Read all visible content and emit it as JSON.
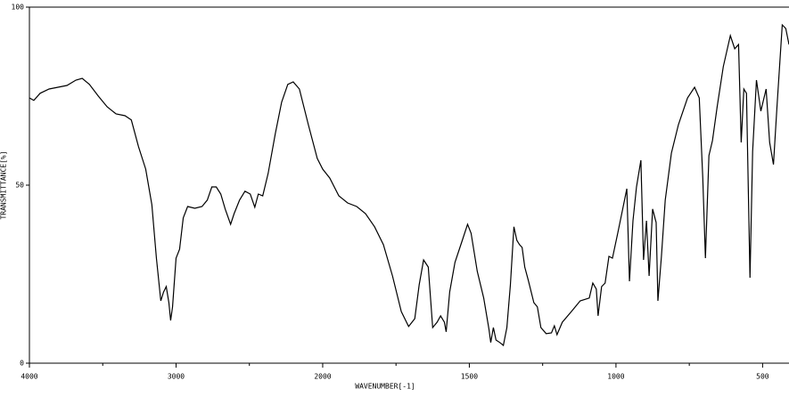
{
  "chart_data": {
    "type": "line",
    "xlabel": "WAVENUMBER[-1]",
    "ylabel": "TRANSMITTANCE[%]",
    "xlim": [
      4000,
      410
    ],
    "xticks": [
      4000,
      3000,
      2000,
      1500,
      1000,
      500
    ],
    "ylim": [
      0,
      100
    ],
    "yticks": [
      0,
      50,
      100
    ],
    "series": [
      {
        "color": "#000000",
        "x": [
          4000,
          3970,
          3927,
          3866,
          3805,
          3744,
          3683,
          3640,
          3591,
          3530,
          3470,
          3409,
          3348,
          3305,
          3256,
          3207,
          3165,
          3134,
          3104,
          3085,
          3067,
          3049,
          3037,
          3024,
          3000,
          2976,
          2951,
          2921,
          2872,
          2823,
          2787,
          2756,
          2726,
          2695,
          2665,
          2628,
          2604,
          2567,
          2530,
          2494,
          2463,
          2439,
          2409,
          2372,
          2323,
          2280,
          2238,
          2201,
          2159,
          2098,
          2037,
          2000,
          1976,
          1945,
          1915,
          1884,
          1854,
          1823,
          1793,
          1762,
          1732,
          1707,
          1686,
          1671,
          1656,
          1640,
          1625,
          1610,
          1598,
          1585,
          1579,
          1567,
          1549,
          1524,
          1506,
          1494,
          1473,
          1451,
          1433,
          1427,
          1418,
          1409,
          1396,
          1384,
          1372,
          1360,
          1348,
          1338,
          1329,
          1320,
          1311,
          1299,
          1280,
          1268,
          1256,
          1238,
          1220,
          1210,
          1201,
          1183,
          1152,
          1122,
          1091,
          1079,
          1067,
          1061,
          1049,
          1037,
          1024,
          1012,
          994,
          979,
          963,
          954,
          942,
          930,
          915,
          906,
          896,
          887,
          875,
          863,
          857,
          845,
          832,
          811,
          787,
          756,
          732,
          716,
          704,
          695,
          683,
          671,
          655,
          634,
          610,
          595,
          582,
          573,
          564,
          555,
          543,
          534,
          521,
          506,
          488,
          476,
          463,
          451,
          433,
          421,
          410
        ],
        "values": [
          74.5,
          73.8,
          75.8,
          77,
          77.5,
          78,
          79.5,
          80,
          78.3,
          75,
          72,
          70,
          69.5,
          68.3,
          60.8,
          54.5,
          44.5,
          29.5,
          17.5,
          20,
          21.5,
          17,
          12,
          15.8,
          29.5,
          32,
          40.8,
          44,
          43.5,
          44,
          45.8,
          49.5,
          49.5,
          47.5,
          43.3,
          39,
          42,
          45.8,
          48.3,
          47.5,
          43.8,
          47.5,
          47,
          53.3,
          64.5,
          73.3,
          78.3,
          79,
          77,
          67,
          57.5,
          54.5,
          52,
          47,
          45,
          44,
          42,
          38.3,
          33.3,
          24.5,
          14.5,
          10.3,
          12.5,
          22,
          29,
          27,
          10,
          11.5,
          13.3,
          11.5,
          8.8,
          20,
          28.3,
          34.5,
          39,
          36.5,
          25.8,
          18.3,
          9.5,
          5.8,
          10,
          6.5,
          5.8,
          5,
          10,
          22,
          38.3,
          34.5,
          33.3,
          32.5,
          27,
          23.3,
          17,
          15.8,
          10,
          8.3,
          8.5,
          10.5,
          8,
          11.5,
          14.5,
          17.5,
          18.3,
          22.5,
          20.8,
          13.3,
          21.5,
          22.5,
          30,
          29.5,
          36.5,
          42.5,
          49,
          23,
          40,
          49.5,
          57,
          29,
          40,
          24.5,
          43.3,
          39.5,
          17.5,
          30,
          45.8,
          59,
          67,
          74.5,
          77.5,
          74.5,
          52,
          29.5,
          58.3,
          62.5,
          72,
          83.3,
          92,
          88.3,
          89.5,
          62,
          77,
          75.8,
          24,
          59.5,
          79.5,
          70.8,
          77,
          62,
          55.8,
          72,
          95,
          94,
          89.5
        ]
      }
    ]
  }
}
